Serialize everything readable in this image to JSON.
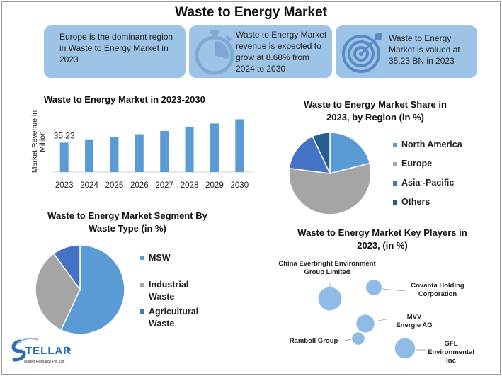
{
  "title": "Waste to Energy Market",
  "cards": [
    {
      "text": "Europe is the dominant region in Waste to Energy Market in 2023",
      "icon": "globe-icon"
    },
    {
      "text": "Waste to Energy Market revenue is expected to grow at 8.68% from 2024 to 2030",
      "icon": "stopwatch-icon"
    },
    {
      "text": "Waste to Energy Market is valued at 35.23 BN in 2023",
      "icon": "target-icon"
    }
  ],
  "logo": {
    "name": "STELLAR",
    "tagline": "Market Research Pvt. Ltd."
  },
  "colors": {
    "card_bg": "#9dc3e6",
    "bar": "#5b9bd5",
    "dark_blue": "#255e91",
    "mid_blue": "#4472c4",
    "gray": "#a5a5a5",
    "bubble": "#8fbce6"
  },
  "chart_data": [
    {
      "type": "bar",
      "title": "Waste to Energy Market in 2023-2030",
      "ylabel": "Market Revenue in Million",
      "categories": [
        "2023",
        "2024",
        "2025",
        "2026",
        "2027",
        "2028",
        "2029",
        "2030"
      ],
      "values": [
        35.23,
        38.29,
        41.61,
        45.22,
        49.15,
        53.42,
        58.06,
        63.1
      ],
      "data_labels": [
        "35.23",
        "",
        "",
        "",
        "",
        "",
        "",
        ""
      ],
      "ylim": [
        0,
        66
      ]
    },
    {
      "type": "pie",
      "title": "Waste to Energy Market Share in 2023, by Region (in %)",
      "categories": [
        "North America",
        "Europe",
        "Asia -Pacific",
        "Others"
      ],
      "values": [
        21,
        56,
        16,
        7
      ],
      "colors": [
        "#5b9bd5",
        "#a5a5a5",
        "#4472c4",
        "#255e91"
      ],
      "legend": "right"
    },
    {
      "type": "pie",
      "title": "Waste to Energy Market Segment By Waste Type (in %)",
      "categories": [
        "MSW",
        "Industrial Waste",
        "Agricultural Waste"
      ],
      "values": [
        57,
        33,
        10
      ],
      "colors": [
        "#5b9bd5",
        "#a5a5a5",
        "#4472c4"
      ],
      "legend": "right"
    },
    {
      "type": "scatter",
      "title": "Waste to Energy Market Key Players in 2023, (in %)",
      "points": [
        {
          "label": "China Everbright Environment Group Limited",
          "size": 3
        },
        {
          "label": "Covanta Holding Corporation",
          "size": 2
        },
        {
          "label": "MVV Energie AG",
          "size": 2.3
        },
        {
          "label": "Ramboll Group",
          "size": 1.6
        },
        {
          "label": "GFL Environmental Inc",
          "size": 2.6
        }
      ]
    }
  ]
}
